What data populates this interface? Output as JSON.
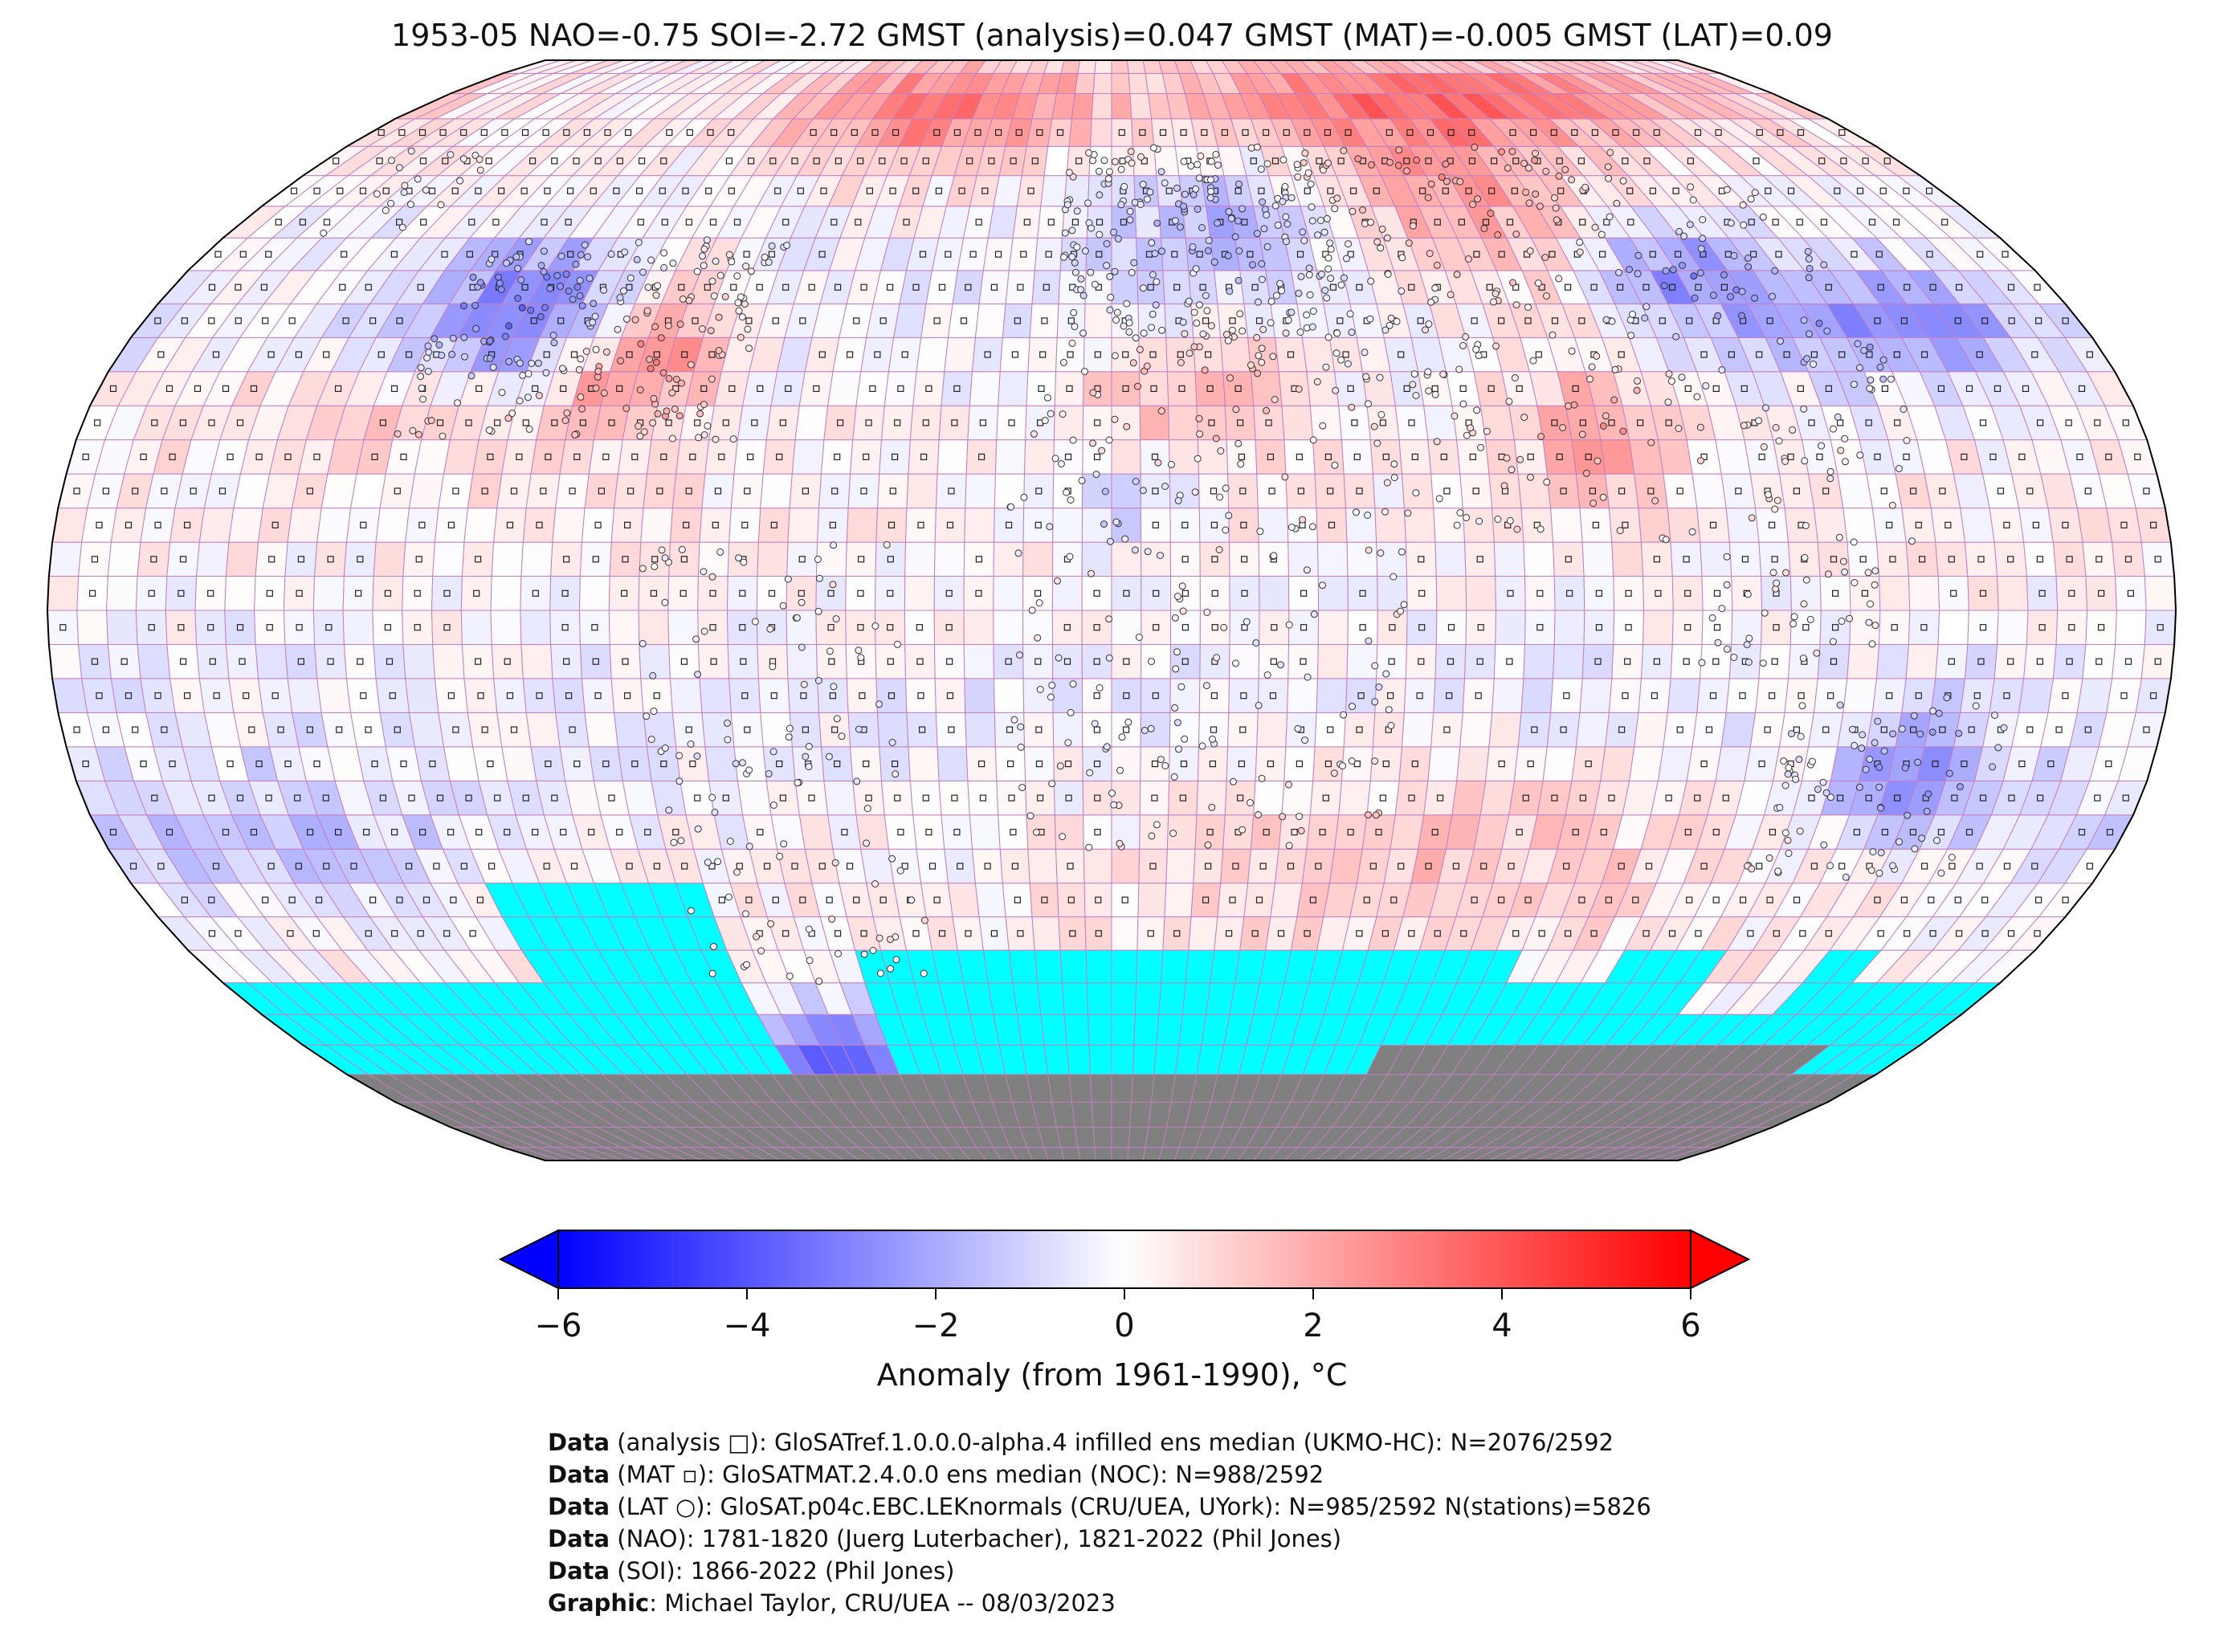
{
  "title": "1953-05 NAO=-0.75 SOI=-2.72 GMST (analysis)=0.047 GMST (MAT)=-0.005 GMST (LAT)=0.09",
  "colorbar": {
    "label": "Anomaly (from 1961-1990), °C",
    "min": -6,
    "max": 6,
    "ticks": [
      "−6",
      "−4",
      "−2",
      "0",
      "2",
      "4",
      "6"
    ],
    "colors": {
      "low": "#0000ff",
      "mid": "#ffffff",
      "high": "#ff0000"
    },
    "extend": "both"
  },
  "map": {
    "projection": "Robinson",
    "ocean_mask_color": "#00ffff",
    "land_mask_color": "#808080",
    "grid_color": "#c080c0"
  },
  "credits": [
    {
      "bold": "Data",
      "text": " (analysis □): GloSATref.1.0.0.0-alpha.4 infilled ens median (UKMO-HC): N=2076/2592"
    },
    {
      "bold": "Data",
      "text": " (MAT ▫): GloSATMAT.2.4.0.0 ens median (NOC): N=988/2592"
    },
    {
      "bold": "Data",
      "text": " (LAT ○): GloSAT.p04c.EBC.LEKnormals (CRU/UEA, UYork): N=985/2592 N(stations)=5826"
    },
    {
      "bold": "Data",
      "text": " (NAO): 1781-1820 (Juerg Luterbacher), 1821-2022 (Phil Jones)"
    },
    {
      "bold": "Data",
      "text": " (SOI): 1866-2022 (Phil Jones)"
    },
    {
      "bold": "Graphic",
      "text": ": Michael Taylor, CRU/UEA -- 08/03/2023"
    }
  ]
}
